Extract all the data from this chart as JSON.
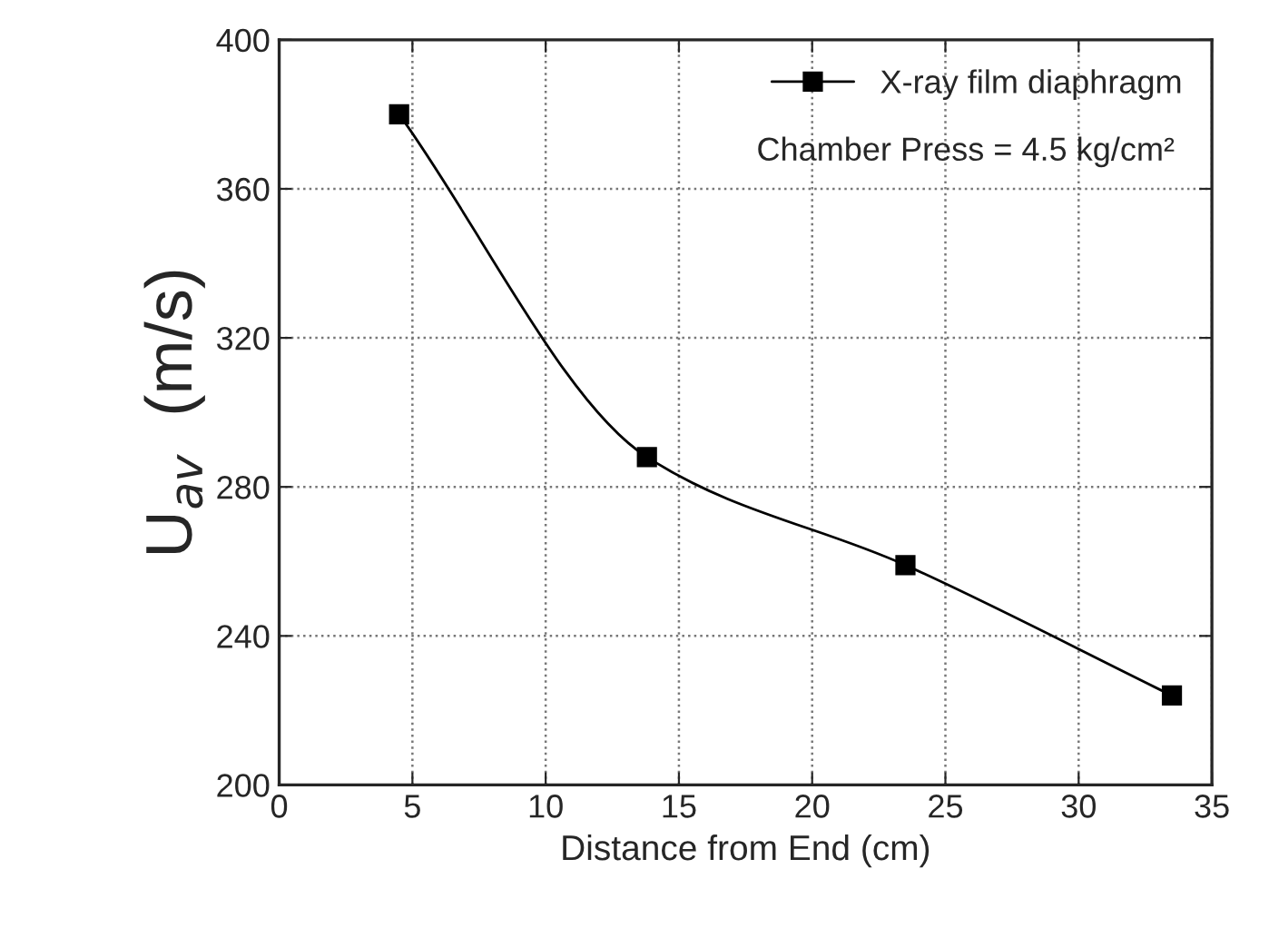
{
  "chart_data": {
    "type": "line",
    "xlabel": "Distance from End (cm)",
    "ylabel": "U$_{av}$  (m/s)",
    "x": [
      4.5,
      13.8,
      23.5,
      33.5
    ],
    "series": [
      {
        "name": "X-ray film diaphragm",
        "color": "#000000",
        "values": [
          380,
          288,
          259,
          224
        ]
      }
    ],
    "annotations": [
      "Chamber Press = 4.5 kg/cm²"
    ],
    "xlim": [
      0,
      35
    ],
    "xticks": [
      0,
      5,
      10,
      15,
      20,
      25,
      30,
      35
    ],
    "ylim": [
      200,
      400
    ],
    "yticks": [
      200,
      240,
      280,
      320,
      360,
      400
    ],
    "grid": true,
    "legend": "top right",
    "marker": "square",
    "line_style": "solid"
  }
}
